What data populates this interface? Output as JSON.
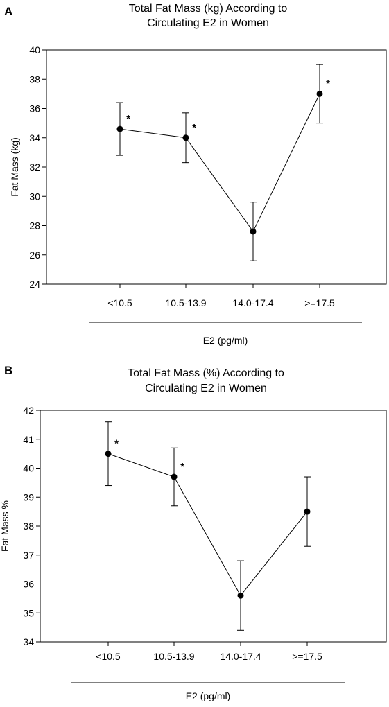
{
  "chart_data": [
    {
      "panel": "A",
      "type": "line",
      "title_lines": [
        "Total Fat Mass (kg) According to",
        "Circulating E2 in Women"
      ],
      "xlabel": "E2 (pg/ml)",
      "ylabel": "Fat Mass  (kg)",
      "categories": [
        "<10.5",
        "10.5-13.9",
        "14.0-17.4",
        ">=17.5"
      ],
      "series": [
        {
          "values": [
            34.6,
            34.0,
            27.6,
            37.0
          ],
          "err_low": [
            32.8,
            32.3,
            25.6,
            35.0
          ],
          "err_high": [
            36.4,
            35.7,
            29.6,
            39.0
          ],
          "significant": [
            true,
            true,
            false,
            true
          ]
        }
      ],
      "star_symbol": "*",
      "ylim": [
        24,
        40
      ],
      "yticks": [
        24,
        26,
        28,
        30,
        32,
        34,
        36,
        38,
        40
      ],
      "grid": false
    },
    {
      "panel": "B",
      "type": "line",
      "title_lines": [
        "Total Fat Mass (%) According to",
        "Circulating E2 in Women"
      ],
      "xlabel": "E2 (pg/ml)",
      "ylabel": "Fat Mass %",
      "categories": [
        "<10.5",
        "10.5-13.9",
        "14.0-17.4",
        ">=17.5"
      ],
      "series": [
        {
          "values": [
            40.5,
            39.7,
            35.6,
            38.5
          ],
          "err_low": [
            39.4,
            38.7,
            34.4,
            37.3
          ],
          "err_high": [
            41.6,
            40.7,
            36.8,
            39.7
          ],
          "significant": [
            true,
            true,
            false,
            false
          ]
        }
      ],
      "star_symbol": "*",
      "ylim": [
        34,
        42
      ],
      "yticks": [
        34,
        35,
        36,
        37,
        38,
        39,
        40,
        41,
        42
      ],
      "grid": false
    }
  ]
}
